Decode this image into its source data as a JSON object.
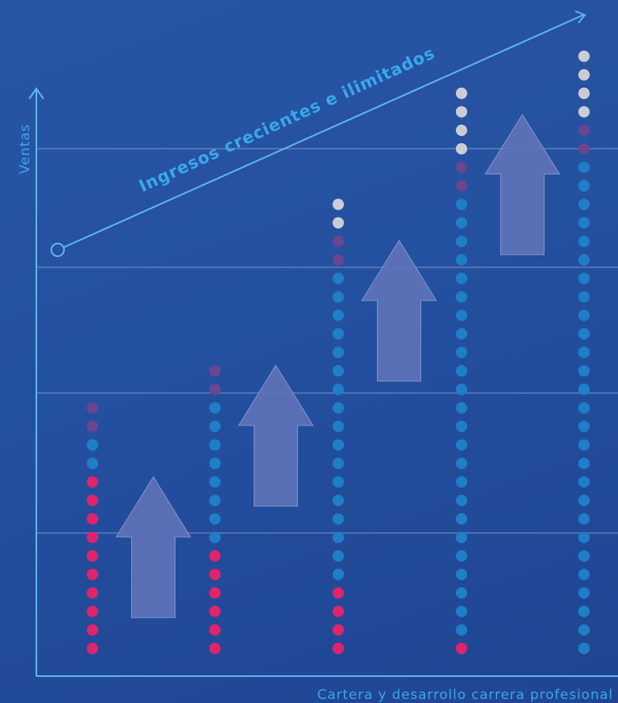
{
  "chart_data": {
    "type": "scatter",
    "subtype": "dot-columns-with-trend-arrow",
    "ylabel": "Ventas",
    "xlabel": "Cartera y desarrollo carrera profesional",
    "annotation": "Ingresos crecientes e ilimitados",
    "grid": true,
    "columns": [
      {
        "stack": [
          {
            "color": "pink",
            "count": 10
          },
          {
            "color": "blue",
            "count": 2
          },
          {
            "color": "purple",
            "count": 2
          }
        ]
      },
      {
        "stack": [
          {
            "color": "pink",
            "count": 6
          },
          {
            "color": "blue",
            "count": 8
          },
          {
            "color": "purple",
            "count": 2
          }
        ]
      },
      {
        "stack": [
          {
            "color": "pink",
            "count": 4
          },
          {
            "color": "blue",
            "count": 17
          },
          {
            "color": "purple",
            "count": 2
          },
          {
            "color": "white",
            "count": 2
          }
        ]
      },
      {
        "stack": [
          {
            "color": "pink",
            "count": 1
          },
          {
            "color": "blue",
            "count": 24
          },
          {
            "color": "purple",
            "count": 2
          },
          {
            "color": "white",
            "count": 4
          }
        ]
      },
      {
        "stack": [
          {
            "color": "blue",
            "count": 27
          },
          {
            "color": "purple",
            "count": 2
          },
          {
            "color": "white",
            "count": 4
          }
        ]
      }
    ]
  },
  "colors": {
    "pink": "#e0246b",
    "blue": "#1f7fc6",
    "purple": "#6a4592",
    "white": "#cbcdd6",
    "axis": "#5fb8ef",
    "grid": "#7f95c6",
    "arrow_fill": "#5e72b8",
    "arrow_stroke": "#8a9cd4",
    "label": "#3aa8ea"
  }
}
